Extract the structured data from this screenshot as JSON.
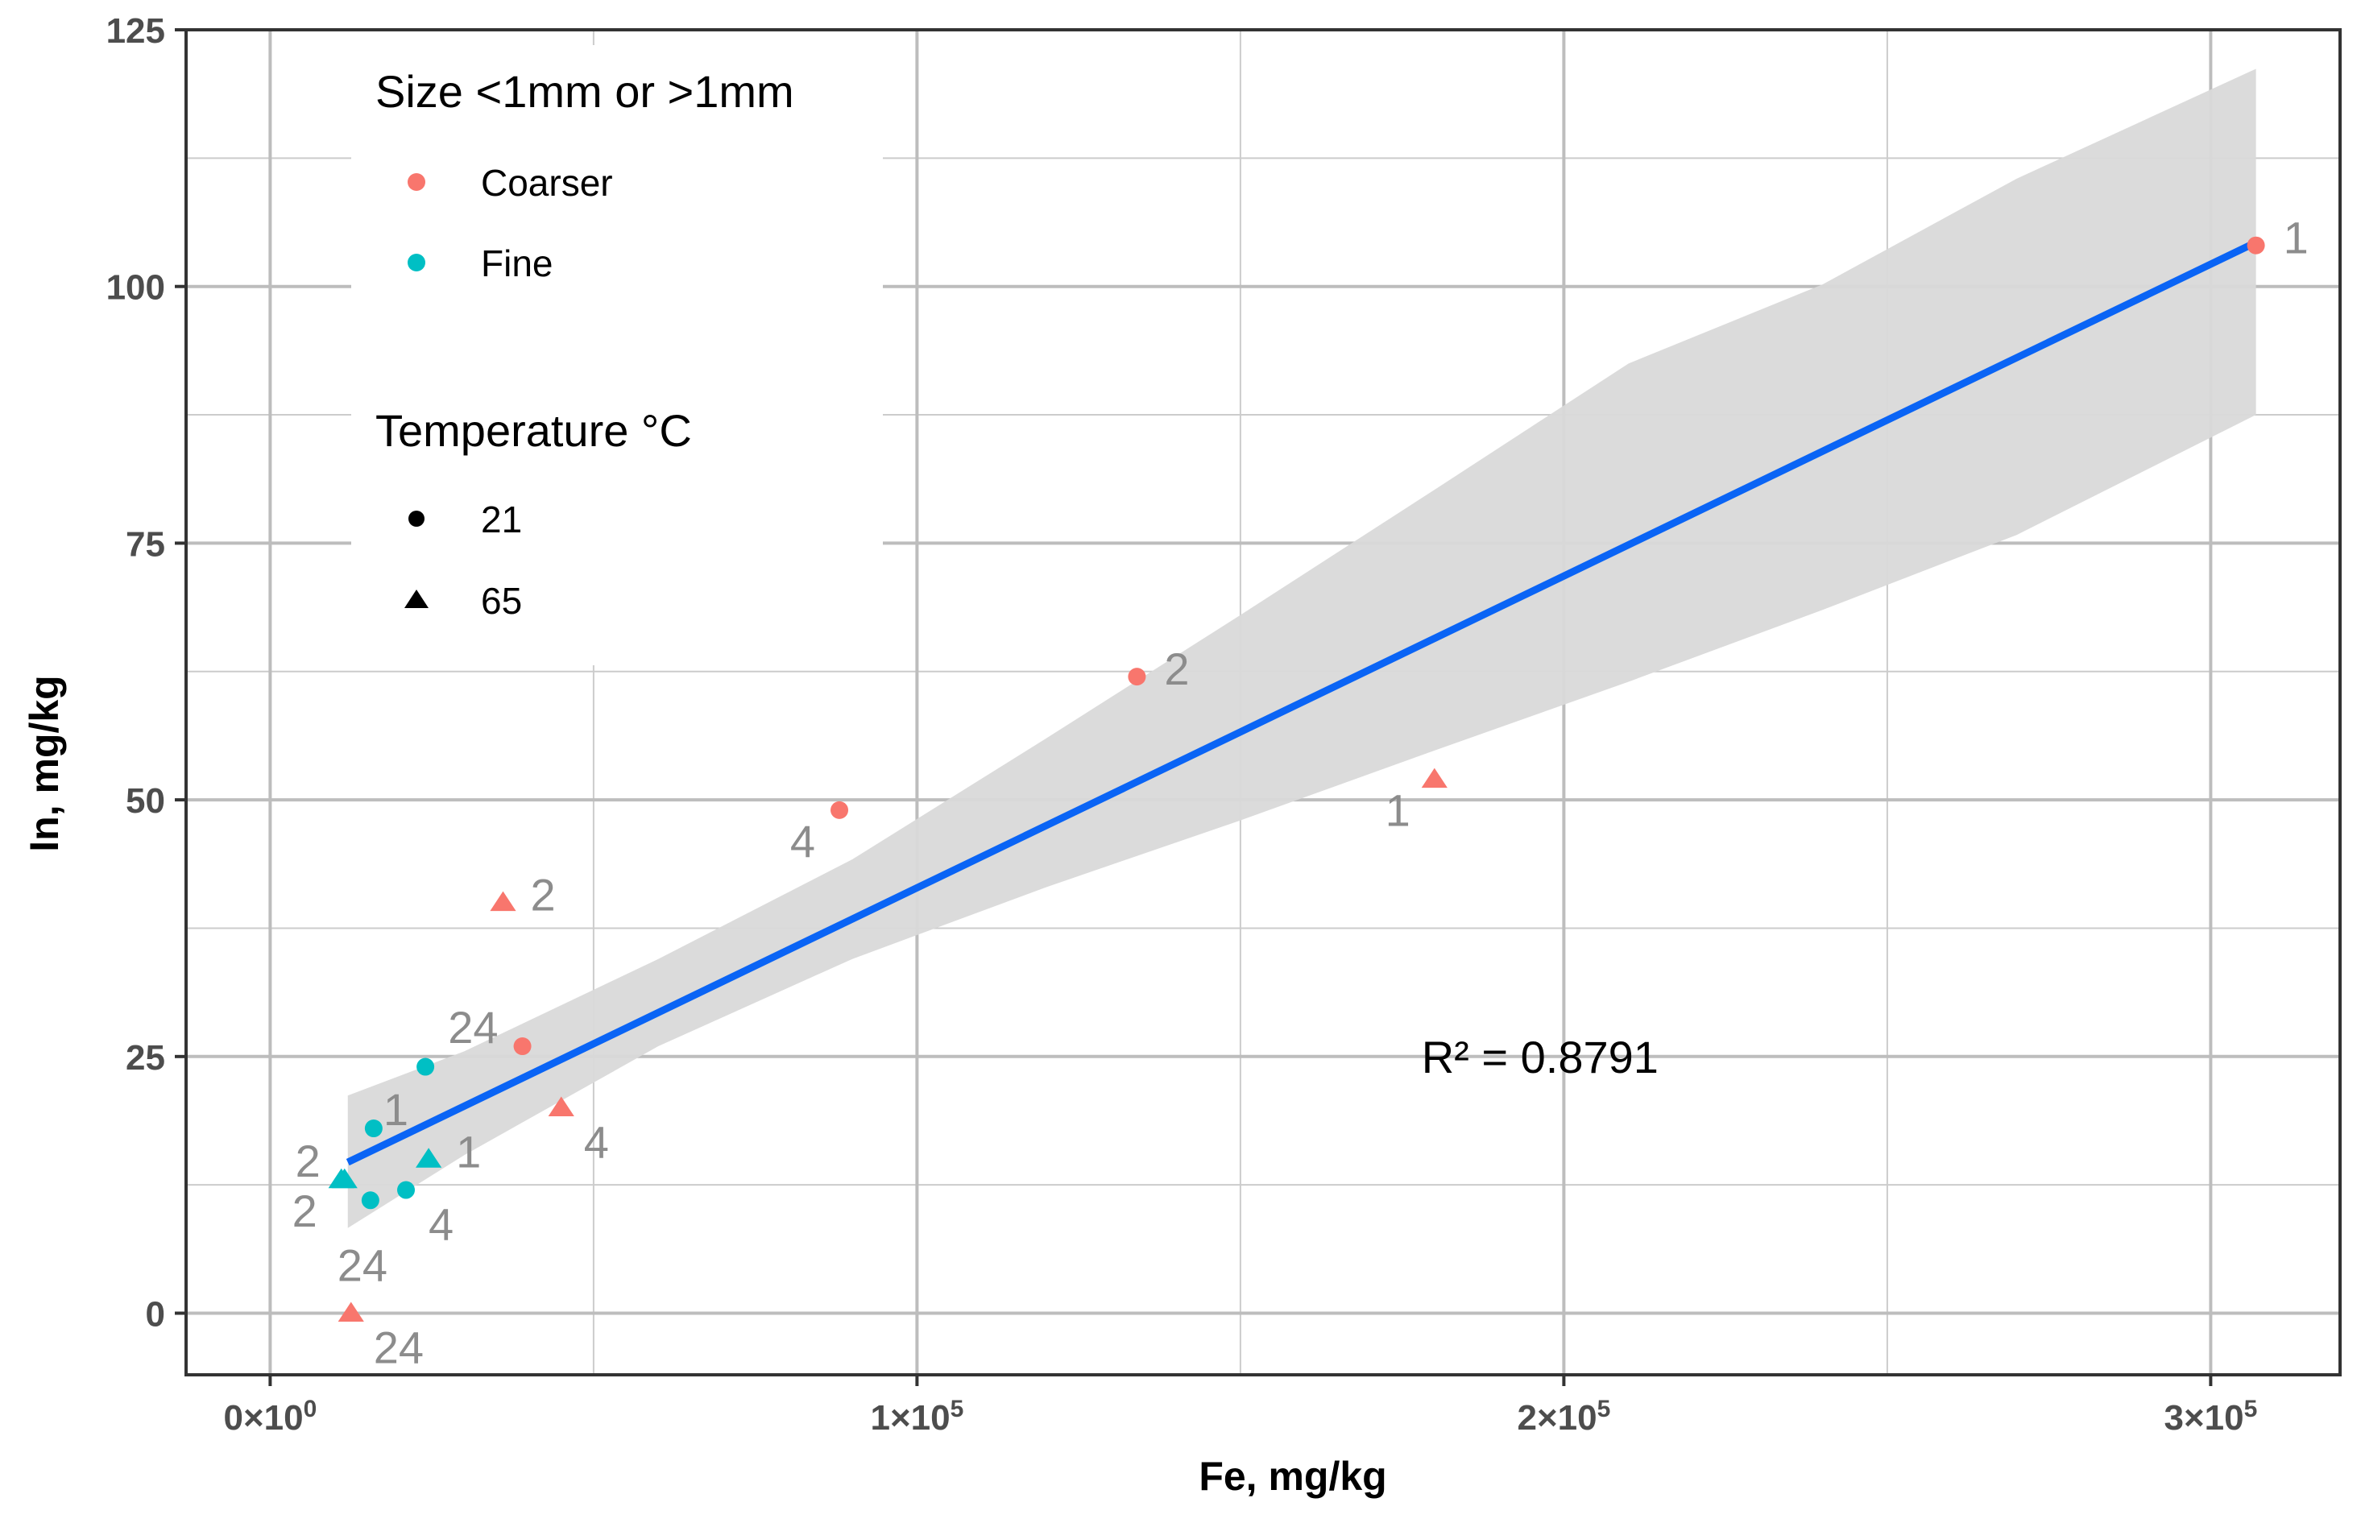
{
  "chart_data": {
    "type": "scatter",
    "xlabel": "Fe, mg/kg",
    "ylabel": "In, mg/kg",
    "xlim": [
      -13000,
      320000
    ],
    "ylim": [
      -6,
      125
    ],
    "x_ticks": [
      {
        "value": 0,
        "base": "0×10",
        "exp": "0"
      },
      {
        "value": 100000,
        "base": "1×10",
        "exp": "5"
      },
      {
        "value": 200000,
        "base": "2×10",
        "exp": "5"
      },
      {
        "value": 300000,
        "base": "3×10",
        "exp": "5"
      }
    ],
    "x_minor_ticks": [
      50000,
      150000,
      250000
    ],
    "y_ticks": [
      {
        "value": 0,
        "label": "0"
      },
      {
        "value": 25,
        "label": "25"
      },
      {
        "value": 50,
        "label": "50"
      },
      {
        "value": 75,
        "label": "75"
      },
      {
        "value": 100,
        "label": "100"
      },
      {
        "value": 125,
        "label": "125"
      }
    ],
    "y_minor_ticks": [
      12.5,
      37.5,
      62.5,
      87.5,
      112.5
    ],
    "grid": true,
    "colors": {
      "Coarser": "#f8766d",
      "Fine": "#00bfc4"
    },
    "legend": {
      "placement": "top-left",
      "color_title": "Size <1mm or >1mm",
      "color_items": [
        {
          "label": "Coarser",
          "color": "#f8766d"
        },
        {
          "label": "Fine",
          "color": "#00bfc4"
        }
      ],
      "shape_title": "Temperature °C",
      "shape_items": [
        {
          "label": "21",
          "shape": "circle"
        },
        {
          "label": "65",
          "shape": "triangle"
        }
      ]
    },
    "points": [
      {
        "x": 307000,
        "y": 104,
        "size": "Coarser",
        "temp": "21",
        "label": "1",
        "label_pos": "right"
      },
      {
        "x": 134000,
        "y": 62,
        "size": "Coarser",
        "temp": "21",
        "label": "2",
        "label_pos": "right"
      },
      {
        "x": 88000,
        "y": 49,
        "size": "Coarser",
        "temp": "21",
        "label": "4",
        "label_pos": "below-left"
      },
      {
        "x": 39000,
        "y": 26,
        "size": "Coarser",
        "temp": "21",
        "label": "24",
        "label_pos": "above-left"
      },
      {
        "x": 180000,
        "y": 52,
        "size": "Coarser",
        "temp": "65",
        "label": "1",
        "label_pos": "below-left"
      },
      {
        "x": 36000,
        "y": 40,
        "size": "Coarser",
        "temp": "65",
        "label": "2",
        "label_pos": "right"
      },
      {
        "x": 45000,
        "y": 20,
        "size": "Coarser",
        "temp": "65",
        "label": "4",
        "label_pos": "below-right"
      },
      {
        "x": 12500,
        "y": 0,
        "size": "Coarser",
        "temp": "65",
        "label": "24",
        "label_pos": "below-right"
      },
      {
        "x": 16000,
        "y": 18,
        "size": "Fine",
        "temp": "21",
        "label": "1",
        "label_pos": "above-right"
      },
      {
        "x": 11500,
        "y": 13,
        "size": "Fine",
        "temp": "65",
        "label": "2",
        "label_pos": "above-left"
      },
      {
        "x": 21000,
        "y": 12,
        "size": "Fine",
        "temp": "21",
        "label": "4",
        "label_pos": "below-right"
      },
      {
        "x": 15500,
        "y": 11,
        "size": "Fine",
        "temp": "21",
        "label": "24",
        "label_pos": "below"
      },
      {
        "x": 24000,
        "y": 24,
        "size": "Fine",
        "temp": "21",
        "label": "",
        "label_pos": "none"
      },
      {
        "x": 24500,
        "y": 15,
        "size": "Fine",
        "temp": "65",
        "label": "1",
        "label_pos": "right"
      },
      {
        "x": 11000,
        "y": 13,
        "size": "Fine",
        "temp": "65",
        "label": "2",
        "label_pos": "below-left"
      }
    ],
    "fit": {
      "x_start": 12000,
      "y_start": 14.7,
      "x_end": 307000,
      "y_end": 104.3,
      "color": "#0a64f5",
      "band": [
        {
          "x": 12000,
          "lo": 8.3,
          "hi": 21.2
        },
        {
          "x": 30000,
          "lo": 15.4,
          "hi": 25.5
        },
        {
          "x": 60000,
          "lo": 26.0,
          "hi": 34.5
        },
        {
          "x": 90000,
          "lo": 34.5,
          "hi": 44.2
        },
        {
          "x": 120000,
          "lo": 41.5,
          "hi": 56.0
        },
        {
          "x": 150000,
          "lo": 48.0,
          "hi": 68.0
        },
        {
          "x": 180000,
          "lo": 54.8,
          "hi": 80.2
        },
        {
          "x": 210000,
          "lo": 61.5,
          "hi": 92.5
        },
        {
          "x": 240000,
          "lo": 68.5,
          "hi": 100.2
        },
        {
          "x": 270000,
          "lo": 75.8,
          "hi": 110.5
        },
        {
          "x": 307000,
          "lo": 87.5,
          "hi": 121.2
        }
      ],
      "band_color": "#d9d9d9"
    },
    "annotation": {
      "text": "R² = 0.8791",
      "x": 178000,
      "y": 25
    }
  }
}
